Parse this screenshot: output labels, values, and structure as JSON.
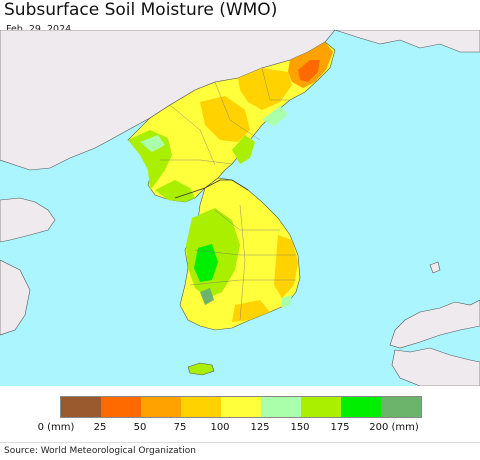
{
  "header": {
    "title": "Subsurface Soil Moisture (WMO)",
    "date": "Feb. 29, 2024"
  },
  "legend": {
    "colors": [
      "#9b5a2e",
      "#ff6a00",
      "#ffa200",
      "#ffd200",
      "#ffff3c",
      "#aaffaa",
      "#aaee00",
      "#00ee00",
      "#6cb46c"
    ],
    "ticks": [
      "0 (mm)",
      "25",
      "50",
      "75",
      "100",
      "125",
      "150",
      "175",
      "200 (mm)"
    ]
  },
  "footer": {
    "source": "Source: World Meteorological Organization"
  },
  "map_colors": {
    "ocean": "#aaf5ff",
    "foreign_land": "#eeeaee",
    "border": "#555555"
  }
}
